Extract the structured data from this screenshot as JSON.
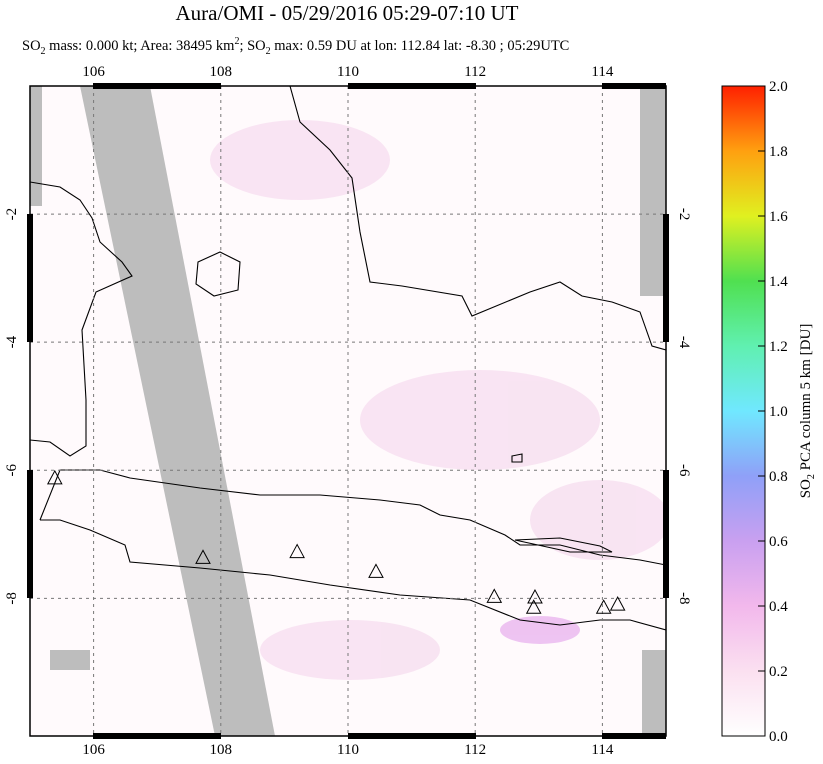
{
  "chart_data": {
    "type": "map",
    "title": "Aura/OMI - 05/29/2016 05:29-07:10 UT",
    "subtitle": [
      "SO",
      "2",
      " mass: 0.000 kt; Area: 38495 km",
      "2",
      "; SO",
      "2",
      " max: 0.59 DU at lon: 112.84 lat: -8.30 ; 05:29UTC"
    ],
    "xlim": [
      105,
      115
    ],
    "xticks": [
      106,
      108,
      110,
      112,
      114
    ],
    "ylim": [
      -10.15,
      0
    ],
    "yticks": [
      -2,
      -4,
      -6,
      -8
    ],
    "grid": true,
    "volcanoes": {
      "lon": [
        105.39,
        107.72,
        109.2,
        110.44,
        112.3,
        112.94,
        112.92,
        114.02,
        114.24
      ],
      "lat": [
        -6.12,
        -7.36,
        -7.27,
        -7.58,
        -7.97,
        -7.98,
        -8.14,
        -8.14,
        -8.09
      ]
    },
    "colorbar": {
      "label": [
        "SO",
        "2",
        " PCA column 5 km [DU]"
      ],
      "lim": [
        0,
        2
      ],
      "ticks": [
        {
          "value": 0,
          "label": "0.0"
        },
        {
          "value": 0.2,
          "label": "0.2"
        },
        {
          "value": 0.4,
          "label": "0.4"
        },
        {
          "value": 0.6,
          "label": "0.6"
        },
        {
          "value": 0.8,
          "label": "0.8"
        },
        {
          "value": 1,
          "label": "1.0"
        },
        {
          "value": 1.2,
          "label": "1.2"
        },
        {
          "value": 1.4,
          "label": "1.4"
        },
        {
          "value": 1.6,
          "label": "1.6"
        },
        {
          "value": 1.8,
          "label": "1.8"
        },
        {
          "value": 2,
          "label": "2.0"
        }
      ]
    }
  }
}
